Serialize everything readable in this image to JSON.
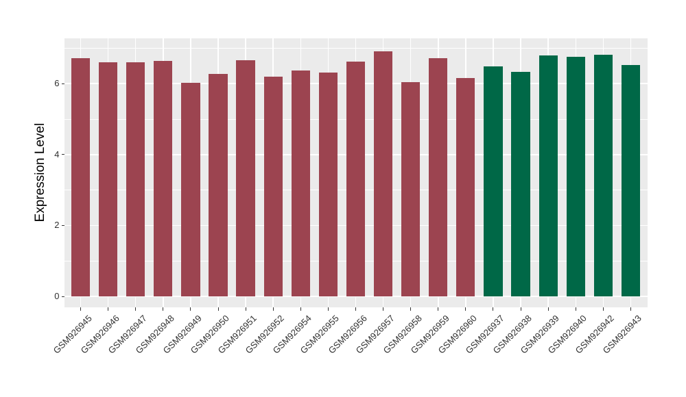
{
  "chart_data": {
    "type": "bar",
    "title": "",
    "xlabel": "",
    "ylabel": "Expression Level",
    "categories": [
      "GSM926945",
      "GSM926946",
      "GSM926947",
      "GSM926948",
      "GSM926949",
      "GSM926950",
      "GSM926951",
      "GSM926952",
      "GSM926954",
      "GSM926955",
      "GSM926956",
      "GSM926957",
      "GSM926958",
      "GSM926959",
      "GSM926960",
      "GSM926937",
      "GSM926938",
      "GSM926939",
      "GSM926940",
      "GSM926942",
      "GSM926943"
    ],
    "values": [
      6.72,
      6.6,
      6.6,
      6.64,
      6.03,
      6.27,
      6.66,
      6.19,
      6.37,
      6.31,
      6.62,
      6.91,
      6.04,
      6.71,
      6.16,
      6.48,
      6.33,
      6.79,
      6.75,
      6.82,
      6.52
    ],
    "bar_colors": [
      "#9C4450",
      "#9C4450",
      "#9C4450",
      "#9C4450",
      "#9C4450",
      "#9C4450",
      "#9C4450",
      "#9C4450",
      "#9C4450",
      "#9C4450",
      "#9C4450",
      "#9C4450",
      "#9C4450",
      "#9C4450",
      "#9C4450",
      "#006847",
      "#006847",
      "#006847",
      "#006847",
      "#006847",
      "#006847"
    ],
    "yticks": [
      0,
      2,
      4,
      6
    ],
    "yticks_minor": [
      1,
      3,
      5,
      7
    ],
    "ylim": [
      0,
      7.3
    ],
    "grid": "on",
    "legend": "none"
  },
  "style": {
    "panel_bg": "#EBEBEB",
    "grid_color": "#FFFFFF",
    "tick_color": "#333333",
    "axis_text_color": "#303030",
    "axis_title_color": "#000000",
    "bar_color_group1": "#9C4450",
    "bar_color_group2": "#006847"
  }
}
